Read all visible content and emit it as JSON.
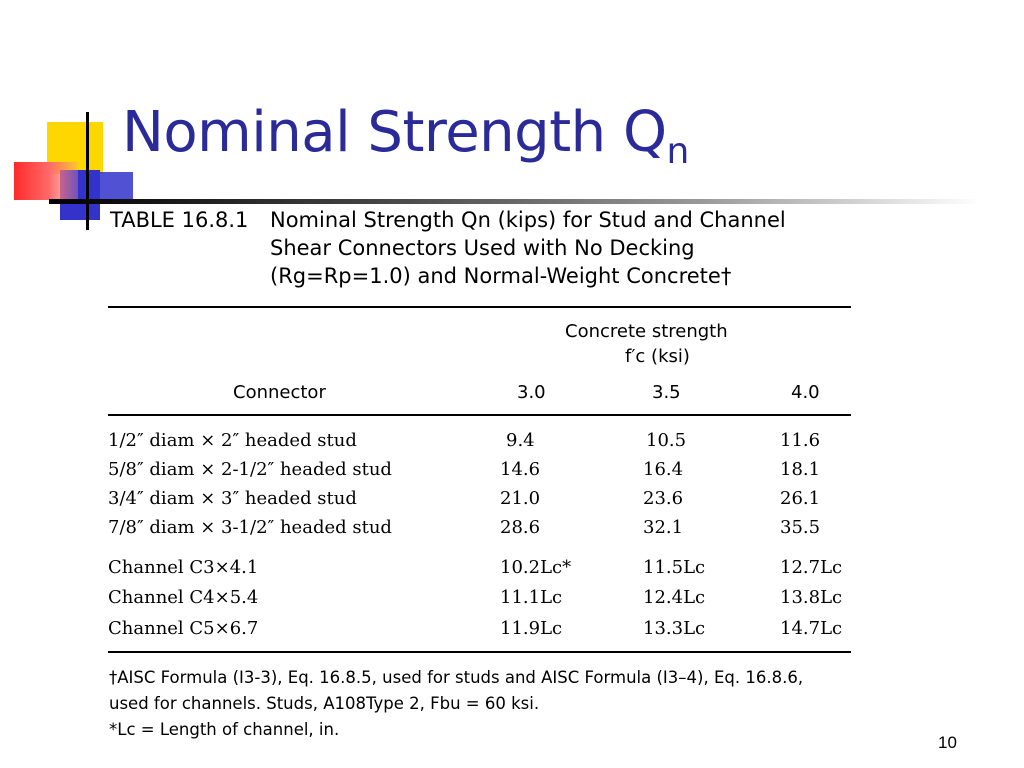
{
  "slide": {
    "title_main": "Nominal Strength Q",
    "title_sub": "n",
    "page_number": "10"
  },
  "table": {
    "caption_number": "TABLE 16.8.1",
    "caption_line1": "Nominal Strength Qn (kips) for Stud and Channel",
    "caption_line2": "Shear Connectors Used with No Decking",
    "caption_line3": "(Rg=Rp=1.0) and Normal-Weight Concrete†",
    "header_group": "Concrete strength",
    "header_group_unit": "f′c (ksi)",
    "header_connector": "Connector",
    "columns": [
      "3.0",
      "3.5",
      "4.0"
    ],
    "stud_rows": [
      {
        "connector": "1/2″ diam × 2″ headed stud",
        "v1": "9.4",
        "v2": "10.5",
        "v3": "11.6"
      },
      {
        "connector": "5/8″ diam × 2-1/2″ headed stud",
        "v1": "14.6",
        "v2": "16.4",
        "v3": "18.1"
      },
      {
        "connector": "3/4″ diam × 3″ headed stud",
        "v1": "21.0",
        "v2": "23.6",
        "v3": "26.1"
      },
      {
        "connector": "7/8″ diam × 3-1/2″ headed stud",
        "v1": "28.6",
        "v2": "32.1",
        "v3": "35.5"
      }
    ],
    "channel_rows": [
      {
        "connector": "Channel C3×4.1",
        "v1": "10.2Lc*",
        "v2": "11.5Lc",
        "v3": "12.7Lc"
      },
      {
        "connector": "Channel C4×5.4",
        "v1": "11.1Lc",
        "v2": "12.4Lc",
        "v3": "13.8Lc"
      },
      {
        "connector": "Channel C5×6.7",
        "v1": "11.9Lc",
        "v2": "13.3Lc",
        "v3": "14.7Lc"
      }
    ],
    "footnote1_line1": "†AISC Formula (I3-3), Eq. 16.8.5, used for studs and AISC Formula (I3–4), Eq. 16.8.6,",
    "footnote1_line2": "used for channels. Studs, A108Type 2, Fbu = 60 ksi.",
    "footnote2": "*Lc = Length of channel, in."
  }
}
